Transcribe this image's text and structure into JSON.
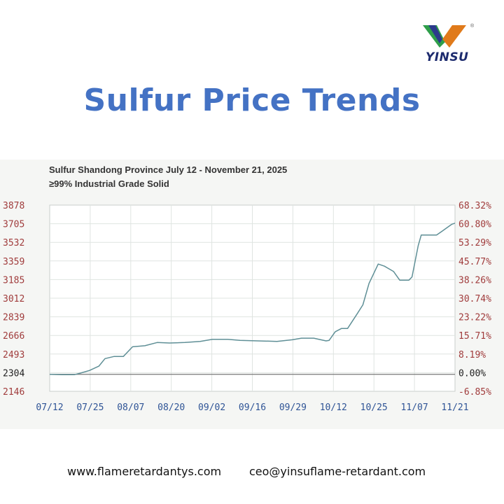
{
  "brand": {
    "logo_text": "YINSU",
    "registered_mark": "®"
  },
  "page_title": "Sulfur Price Trends",
  "colors": {
    "title": "#4472c4",
    "line": "#5f8f96",
    "left_axis_text": "#a03c3c",
    "right_axis_text": "#a03c3c",
    "baseline": "#777777"
  },
  "chart_data": {
    "type": "line",
    "title_line1": "Sulfur Shandong Province  July 12 - November 21, 2025",
    "title_line2": "≥99% Industrial Grade    Solid",
    "x_tick_labels": [
      "07/12",
      "07/25",
      "08/07",
      "08/20",
      "09/02",
      "09/16",
      "09/29",
      "10/12",
      "10/25",
      "11/07",
      "11/21"
    ],
    "y_left_ticks": [
      "3878",
      "3705",
      "3532",
      "3359",
      "3185",
      "3012",
      "2839",
      "2666",
      "2493",
      "2304",
      "2146"
    ],
    "y_right_ticks": [
      "68.32%",
      "60.80%",
      "53.29%",
      "45.77%",
      "38.26%",
      "30.74%",
      "23.22%",
      "15.71%",
      "8.19%",
      "0.00%",
      "-6.85%"
    ],
    "baseline_value": 2304,
    "ylim": [
      2146,
      3878
    ],
    "grid": true,
    "series": [
      {
        "x": [
          "07/12",
          "07/16",
          "07/20",
          "07/22",
          "07/25",
          "07/28",
          "07/30",
          "08/02",
          "08/05",
          "08/08",
          "08/12",
          "08/16",
          "08/20",
          "08/25",
          "08/30",
          "09/03",
          "09/08",
          "09/12",
          "09/18",
          "09/24",
          "09/29",
          "10/02",
          "10/06",
          "10/10",
          "10/11",
          "10/13",
          "10/15",
          "10/17",
          "10/20",
          "10/22",
          "10/24",
          "10/25",
          "10/27",
          "10/29",
          "11/01",
          "11/03",
          "11/05",
          "11/06",
          "11/07",
          "11/09",
          "11/10",
          "11/12",
          "11/15",
          "11/17",
          "11/19",
          "11/20",
          "11/21"
        ],
        "values": [
          2304,
          2300,
          2300,
          2315,
          2340,
          2380,
          2450,
          2470,
          2470,
          2560,
          2570,
          2600,
          2595,
          2600,
          2610,
          2630,
          2630,
          2620,
          2615,
          2610,
          2625,
          2640,
          2640,
          2615,
          2620,
          2700,
          2730,
          2730,
          2860,
          2950,
          3150,
          3210,
          3330,
          3310,
          3260,
          3180,
          3180,
          3180,
          3210,
          3500,
          3600,
          3600,
          3600,
          3640,
          3680,
          3700,
          3710
        ]
      }
    ]
  },
  "footer": {
    "website": "www.flameretardantys.com",
    "email": "ceo@yinsuflame-retardant.com"
  }
}
